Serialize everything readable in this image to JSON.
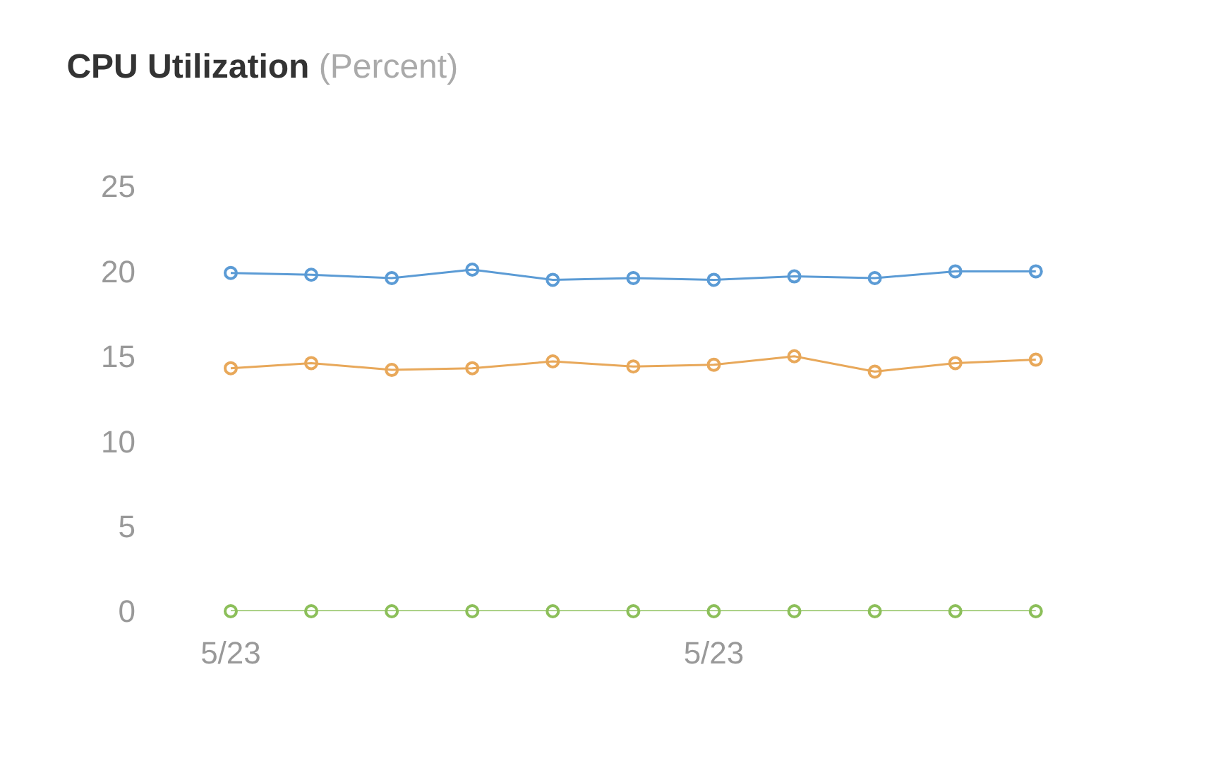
{
  "chart_data": {
    "type": "line",
    "title": "CPU Utilization",
    "subtitle": "(Percent)",
    "categories": [
      "5/23",
      null,
      null,
      null,
      null,
      null,
      "5/23",
      null,
      null,
      null,
      null
    ],
    "series": [
      {
        "color": "#5b9bd5",
        "values": [
          19.9,
          19.8,
          19.6,
          20.1,
          19.5,
          19.6,
          19.5,
          19.7,
          19.6,
          20.0,
          20.0
        ]
      },
      {
        "color": "#e8a85a",
        "values": [
          14.3,
          14.6,
          14.2,
          14.3,
          14.7,
          14.4,
          14.5,
          15.0,
          14.1,
          14.6,
          14.8
        ]
      },
      {
        "color": "#8cbf5a",
        "values": [
          0,
          0,
          0,
          0,
          0,
          0,
          0,
          0,
          0,
          0,
          0
        ]
      }
    ],
    "ylim": [
      0,
      25
    ],
    "yticks": [
      0,
      5,
      10,
      15,
      20,
      25
    ],
    "grid": false,
    "marker": "circle",
    "line_style": "solid"
  }
}
